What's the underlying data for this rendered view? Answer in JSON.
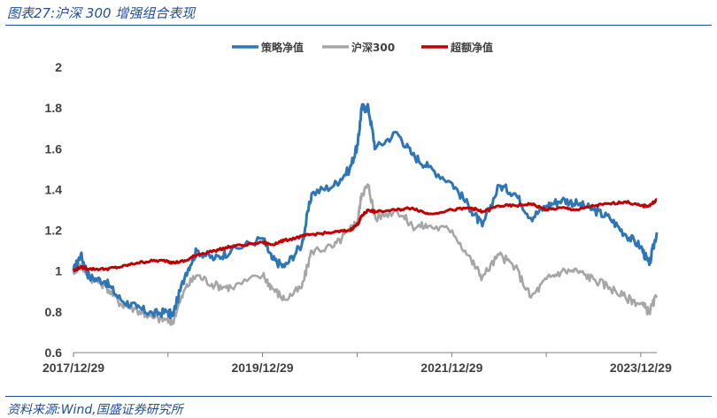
{
  "figure": {
    "title": "图表27:沪深 300 增强组合表现",
    "source": "资料来源:Wind,国盛证券研究所"
  },
  "chart_data": {
    "type": "line",
    "title": "",
    "xlabel": "",
    "ylabel": "",
    "ylim": [
      0.6,
      2.0
    ],
    "yticks": [
      "0.6",
      "0.8",
      "1",
      "1.2",
      "1.4",
      "1.6",
      "1.8",
      "2"
    ],
    "xticks": [
      "2017/12/29",
      "2019/12/29",
      "2021/12/29",
      "2023/12/29"
    ],
    "xrange": [
      "2017-12-29",
      "2024-02-29"
    ],
    "legend_position": "top",
    "grid": false,
    "series": [
      {
        "name": "策略净值",
        "color": "#2e75b6",
        "points": [
          [
            "2017-12-29",
            1.0
          ],
          [
            "2018-01-26",
            1.08
          ],
          [
            "2018-02-28",
            0.97
          ],
          [
            "2018-04-30",
            0.95
          ],
          [
            "2018-06-29",
            0.86
          ],
          [
            "2018-08-31",
            0.82
          ],
          [
            "2018-10-31",
            0.79
          ],
          [
            "2018-12-28",
            0.8
          ],
          [
            "2019-01-15",
            0.78
          ],
          [
            "2019-03-08",
            0.99
          ],
          [
            "2019-04-19",
            1.1
          ],
          [
            "2019-06-28",
            1.06
          ],
          [
            "2019-08-30",
            1.1
          ],
          [
            "2019-12-31",
            1.16
          ],
          [
            "2020-02-03",
            1.06
          ],
          [
            "2020-03-23",
            1.02
          ],
          [
            "2020-05-29",
            1.13
          ],
          [
            "2020-07-06",
            1.38
          ],
          [
            "2020-09-30",
            1.42
          ],
          [
            "2020-11-30",
            1.5
          ],
          [
            "2020-12-31",
            1.62
          ],
          [
            "2021-01-15",
            1.8
          ],
          [
            "2021-02-10",
            1.8
          ],
          [
            "2021-03-09",
            1.6
          ],
          [
            "2021-05-31",
            1.68
          ],
          [
            "2021-07-30",
            1.57
          ],
          [
            "2021-09-30",
            1.51
          ],
          [
            "2021-12-31",
            1.43
          ],
          [
            "2022-03-15",
            1.3
          ],
          [
            "2022-04-26",
            1.22
          ],
          [
            "2022-06-30",
            1.42
          ],
          [
            "2022-08-31",
            1.38
          ],
          [
            "2022-10-31",
            1.26
          ],
          [
            "2022-12-30",
            1.32
          ],
          [
            "2023-02-28",
            1.35
          ],
          [
            "2023-04-28",
            1.33
          ],
          [
            "2023-06-30",
            1.3
          ],
          [
            "2023-08-31",
            1.26
          ],
          [
            "2023-10-31",
            1.18
          ],
          [
            "2023-12-29",
            1.12
          ],
          [
            "2024-01-31",
            1.03
          ],
          [
            "2024-02-29",
            1.19
          ]
        ]
      },
      {
        "name": "沪深300",
        "color": "#a6a6a6",
        "points": [
          [
            "2017-12-29",
            1.0
          ],
          [
            "2018-01-26",
            1.03
          ],
          [
            "2018-02-28",
            0.97
          ],
          [
            "2018-04-30",
            0.93
          ],
          [
            "2018-06-29",
            0.84
          ],
          [
            "2018-08-31",
            0.81
          ],
          [
            "2018-10-31",
            0.77
          ],
          [
            "2018-12-28",
            0.76
          ],
          [
            "2019-01-15",
            0.75
          ],
          [
            "2019-03-08",
            0.92
          ],
          [
            "2019-04-19",
            0.98
          ],
          [
            "2019-06-28",
            0.93
          ],
          [
            "2019-08-30",
            0.92
          ],
          [
            "2019-12-31",
            0.98
          ],
          [
            "2020-02-03",
            0.92
          ],
          [
            "2020-03-23",
            0.86
          ],
          [
            "2020-05-29",
            0.92
          ],
          [
            "2020-07-06",
            1.1
          ],
          [
            "2020-09-30",
            1.12
          ],
          [
            "2020-11-30",
            1.2
          ],
          [
            "2020-12-31",
            1.25
          ],
          [
            "2021-01-15",
            1.38
          ],
          [
            "2021-02-10",
            1.42
          ],
          [
            "2021-03-09",
            1.26
          ],
          [
            "2021-05-31",
            1.3
          ],
          [
            "2021-07-30",
            1.22
          ],
          [
            "2021-09-30",
            1.22
          ],
          [
            "2021-12-31",
            1.2
          ],
          [
            "2022-03-15",
            1.05
          ],
          [
            "2022-04-26",
            0.97
          ],
          [
            "2022-06-30",
            1.08
          ],
          [
            "2022-08-31",
            1.02
          ],
          [
            "2022-10-31",
            0.87
          ],
          [
            "2022-12-30",
            0.96
          ],
          [
            "2023-02-28",
            1.0
          ],
          [
            "2023-04-28",
            1.0
          ],
          [
            "2023-06-30",
            0.96
          ],
          [
            "2023-08-31",
            0.92
          ],
          [
            "2023-10-31",
            0.87
          ],
          [
            "2023-12-29",
            0.84
          ],
          [
            "2024-01-31",
            0.8
          ],
          [
            "2024-02-29",
            0.88
          ]
        ]
      },
      {
        "name": "超额净值",
        "color": "#c00000",
        "points": [
          [
            "2017-12-29",
            1.0
          ],
          [
            "2018-01-26",
            1.02
          ],
          [
            "2018-02-28",
            1.01
          ],
          [
            "2018-04-30",
            1.01
          ],
          [
            "2018-06-29",
            1.02
          ],
          [
            "2018-08-31",
            1.04
          ],
          [
            "2018-10-31",
            1.05
          ],
          [
            "2018-12-28",
            1.05
          ],
          [
            "2019-01-15",
            1.04
          ],
          [
            "2019-03-08",
            1.05
          ],
          [
            "2019-04-19",
            1.08
          ],
          [
            "2019-06-28",
            1.1
          ],
          [
            "2019-08-30",
            1.12
          ],
          [
            "2019-12-31",
            1.14
          ],
          [
            "2020-02-03",
            1.13
          ],
          [
            "2020-03-23",
            1.15
          ],
          [
            "2020-05-29",
            1.17
          ],
          [
            "2020-07-06",
            1.18
          ],
          [
            "2020-09-30",
            1.19
          ],
          [
            "2020-11-30",
            1.2
          ],
          [
            "2020-12-31",
            1.23
          ],
          [
            "2021-01-15",
            1.27
          ],
          [
            "2021-02-10",
            1.3
          ],
          [
            "2021-03-09",
            1.29
          ],
          [
            "2021-05-31",
            1.3
          ],
          [
            "2021-07-30",
            1.31
          ],
          [
            "2021-09-30",
            1.28
          ],
          [
            "2021-12-31",
            1.3
          ],
          [
            "2022-03-15",
            1.31
          ],
          [
            "2022-04-26",
            1.29
          ],
          [
            "2022-06-30",
            1.32
          ],
          [
            "2022-08-31",
            1.32
          ],
          [
            "2022-10-31",
            1.33
          ],
          [
            "2022-12-30",
            1.3
          ],
          [
            "2023-02-28",
            1.31
          ],
          [
            "2023-04-28",
            1.3
          ],
          [
            "2023-06-30",
            1.32
          ],
          [
            "2023-08-31",
            1.33
          ],
          [
            "2023-10-31",
            1.34
          ],
          [
            "2023-12-29",
            1.32
          ],
          [
            "2024-01-31",
            1.32
          ],
          [
            "2024-02-29",
            1.35
          ]
        ]
      }
    ]
  }
}
